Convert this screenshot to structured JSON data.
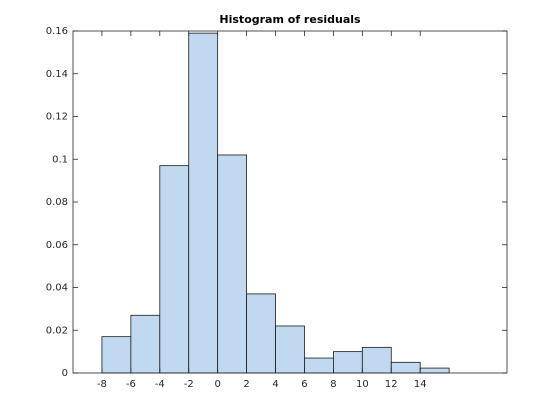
{
  "chart_data": {
    "type": "histogram",
    "title": "Histogram of residuals",
    "bins": [
      -8,
      -6,
      -4,
      -2,
      0,
      2,
      4,
      6,
      8,
      10,
      12,
      14,
      16
    ],
    "values": [
      0.017,
      0.027,
      0.097,
      0.159,
      0.102,
      0.037,
      0.022,
      0.007,
      0.01,
      0.012,
      0.005,
      0.0023
    ],
    "color": "#c0d9f1",
    "edgecolor": "#1a1a1a",
    "xlim": [
      -10,
      20
    ],
    "xticks": [
      -8,
      -6,
      -4,
      -2,
      0,
      2,
      4,
      6,
      8,
      10,
      12,
      14
    ],
    "ylim": [
      0,
      0.16
    ],
    "yticks": [
      0,
      0.02,
      0.04,
      0.06,
      0.08,
      0.1,
      0.12,
      0.14,
      0.16
    ]
  }
}
